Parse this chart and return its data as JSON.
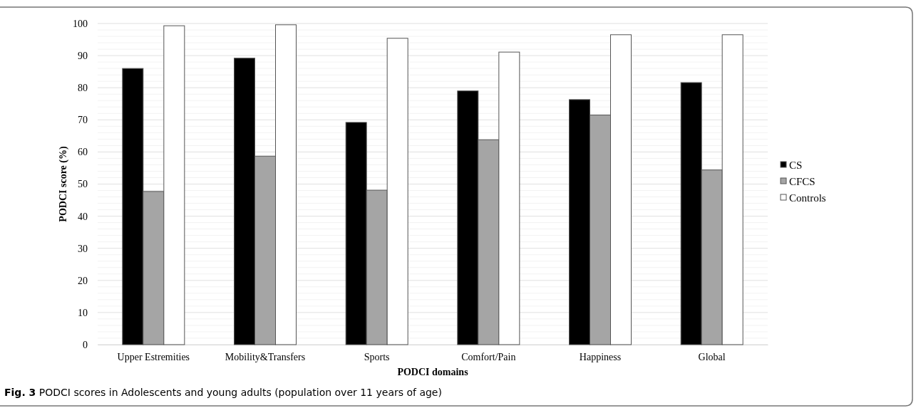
{
  "chart_data": {
    "type": "bar",
    "xlabel": "PODCI domains",
    "ylabel": "PODCI score (%)",
    "categories": [
      "Upper Estremities",
      "Mobility&Transfers",
      "Sports",
      "Comfort/Pain",
      "Happiness",
      "Global"
    ],
    "series": [
      {
        "name": "CS",
        "color": "#000000",
        "values": [
          86,
          89.2,
          69.2,
          79,
          76.3,
          81.6
        ]
      },
      {
        "name": "CFCS",
        "color": "#a5a5a5",
        "values": [
          47.7,
          58.7,
          48.1,
          63.8,
          71.5,
          54.4
        ]
      },
      {
        "name": "Controls",
        "color": "#ffffff",
        "values": [
          99.3,
          99.6,
          95.4,
          91.1,
          96.5,
          96.5
        ]
      }
    ],
    "ylim": [
      0,
      100
    ],
    "yticks": [
      0,
      10,
      20,
      30,
      40,
      50,
      60,
      70,
      80,
      90,
      100
    ],
    "grid": "y",
    "legend": "right",
    "annotations": [
      "Fig. 3",
      "PODCI scores in Adolescents and young adults (population over 11 years of age)"
    ]
  }
}
